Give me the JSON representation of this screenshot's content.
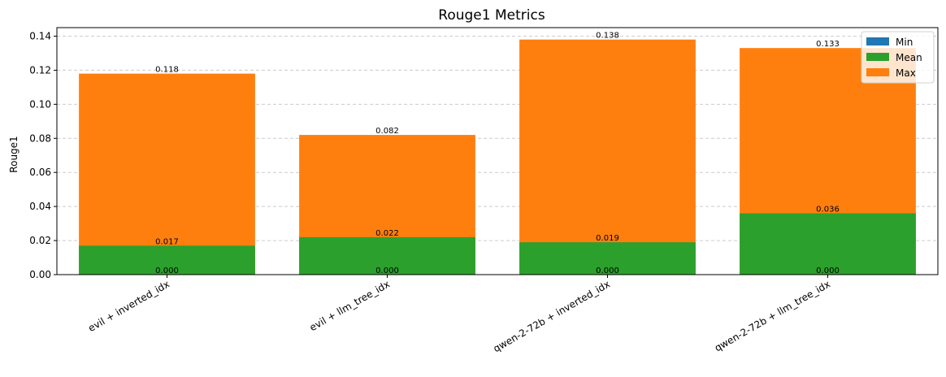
{
  "chart_data": {
    "type": "bar",
    "title": "Rouge1 Metrics",
    "xlabel": "",
    "ylabel": "Rouge1",
    "categories": [
      "evil + inverted_idx",
      "evil + llm_tree_idx",
      "qwen-2-72b + inverted_idx",
      "qwen-2-72b + llm_tree_idx"
    ],
    "series": [
      {
        "name": "Max",
        "color": "#ff7f0e",
        "values": [
          0.118,
          0.082,
          0.138,
          0.133
        ],
        "labels": [
          "0.118",
          "0.082",
          "0.138",
          "0.133"
        ]
      },
      {
        "name": "Mean",
        "color": "#2ca02c",
        "values": [
          0.017,
          0.022,
          0.019,
          0.036
        ],
        "labels": [
          "0.017",
          "0.022",
          "0.019",
          "0.036"
        ]
      },
      {
        "name": "Min",
        "color": "#1f77b4",
        "values": [
          0.0,
          0.0,
          0.0,
          0.0
        ],
        "labels": [
          "0.000",
          "0.000",
          "0.000",
          "0.000"
        ]
      }
    ],
    "legend_order": [
      "Min",
      "Mean",
      "Max"
    ],
    "legend_position": "top-right",
    "ylim": [
      0,
      0.145
    ],
    "yticks": [
      0.0,
      0.02,
      0.04,
      0.06,
      0.08,
      0.1,
      0.12,
      0.14
    ],
    "ytick_labels": [
      "0.00",
      "0.02",
      "0.04",
      "0.06",
      "0.08",
      "0.10",
      "0.12",
      "0.14"
    ],
    "grid": "horizontal-dashed"
  }
}
